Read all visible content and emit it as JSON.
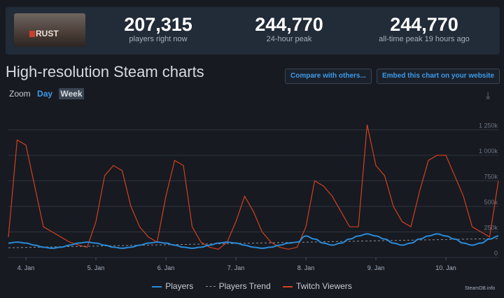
{
  "game": {
    "logo_text": "RUST"
  },
  "stats": [
    {
      "value": "207,315",
      "label": "players right now"
    },
    {
      "value": "244,770",
      "label": "24-hour peak"
    },
    {
      "value": "244,770",
      "label": "all-time peak 19 hours ago"
    }
  ],
  "title": "High-resolution Steam charts",
  "buttons": {
    "compare": "Compare with others...",
    "embed": "Embed this chart on your website"
  },
  "zoom": {
    "label": "Zoom",
    "day": "Day",
    "week": "Week",
    "selected": "Week"
  },
  "icons": {
    "download": "download-icon"
  },
  "chart_data": {
    "type": "line",
    "x_start": "3 Jan 18:00",
    "x_step_hours": 3,
    "x_ticks": [
      "4. Jan",
      "5. Jan",
      "6. Jan",
      "7. Jan",
      "8. Jan",
      "9. Jan",
      "10. Jan"
    ],
    "y_ticks": [
      "0",
      "250k",
      "500k",
      "750k",
      "1 000k",
      "1 250k"
    ],
    "y_tick_values": [
      0,
      250000,
      500000,
      750000,
      1000000,
      1250000
    ],
    "ylim": [
      0,
      1300000
    ],
    "grid": true,
    "legend_position": "bottom",
    "colors": {
      "Players": "#2a8bd8",
      "Players Trend": "#8a8f96",
      "Twitch Viewers": "#d2401f"
    },
    "series": [
      {
        "name": "Players",
        "unit": "k",
        "values": [
          140,
          150,
          140,
          120,
          100,
          90,
          100,
          120,
          140,
          150,
          140,
          120,
          100,
          90,
          100,
          120,
          140,
          150,
          140,
          120,
          100,
          90,
          100,
          120,
          140,
          150,
          140,
          120,
          100,
          90,
          100,
          120,
          140,
          150,
          210,
          180,
          140,
          120,
          140,
          180,
          210,
          230,
          210,
          180,
          140,
          120,
          140,
          180,
          210,
          230,
          210,
          180,
          140,
          120,
          140,
          180,
          210
        ]
      },
      {
        "name": "Players Trend",
        "unit": "k",
        "values": [
          95,
          185
        ],
        "dashed": true
      },
      {
        "name": "Twitch Viewers",
        "unit": "k",
        "values": [
          200,
          1150,
          1100,
          700,
          300,
          250,
          200,
          150,
          120,
          100,
          350,
          800,
          900,
          850,
          500,
          300,
          200,
          150,
          600,
          950,
          900,
          300,
          150,
          100,
          80,
          150,
          350,
          600,
          450,
          250,
          150,
          100,
          80,
          100,
          300,
          750,
          700,
          600,
          450,
          300,
          300,
          1300,
          900,
          800,
          500,
          350,
          300,
          650,
          950,
          1000,
          1000,
          800,
          600,
          300,
          250,
          200,
          750
        ]
      }
    ]
  },
  "credit": "SteamDB.info"
}
